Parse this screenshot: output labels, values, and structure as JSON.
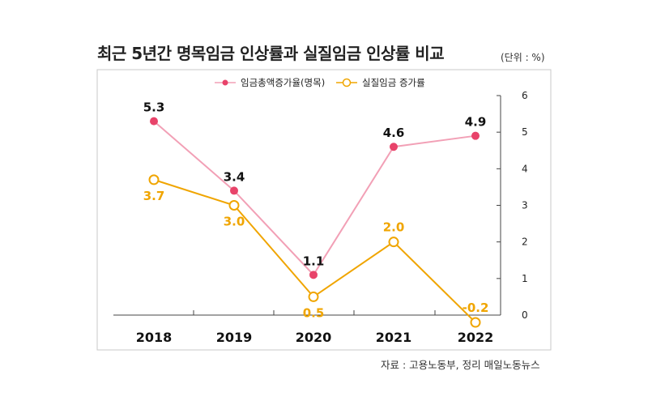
{
  "title": "최근 5년간 명목임금 인상률과 실질임금 인상률 비교",
  "unit": "(단위 : %)",
  "source": "자료 : 고용노동부, 정리 매일노동뉴스",
  "colors": {
    "nominal": "#e8436a",
    "nominal_line": "#f2a0b6",
    "real": "#f0a500"
  },
  "chart_data": {
    "type": "line",
    "categories": [
      "2018",
      "2019",
      "2020",
      "2021",
      "2022"
    ],
    "ylim": [
      0,
      6
    ],
    "yticks": [
      "0",
      "1",
      "2",
      "3",
      "4",
      "5",
      "6"
    ],
    "grid": false,
    "legend_position": "top",
    "series": [
      {
        "name": "임금총액증가율(명목)",
        "values": [
          5.3,
          3.4,
          1.1,
          4.6,
          4.9
        ],
        "labels": [
          "5.3",
          "3.4",
          "1.1",
          "4.6",
          "4.9"
        ]
      },
      {
        "name": "실질임금 증가률",
        "values": [
          3.7,
          3.0,
          0.5,
          2.0,
          -0.2
        ],
        "labels": [
          "3.7",
          "3.0",
          "0.5",
          "2.0",
          "-0.2"
        ]
      }
    ]
  }
}
